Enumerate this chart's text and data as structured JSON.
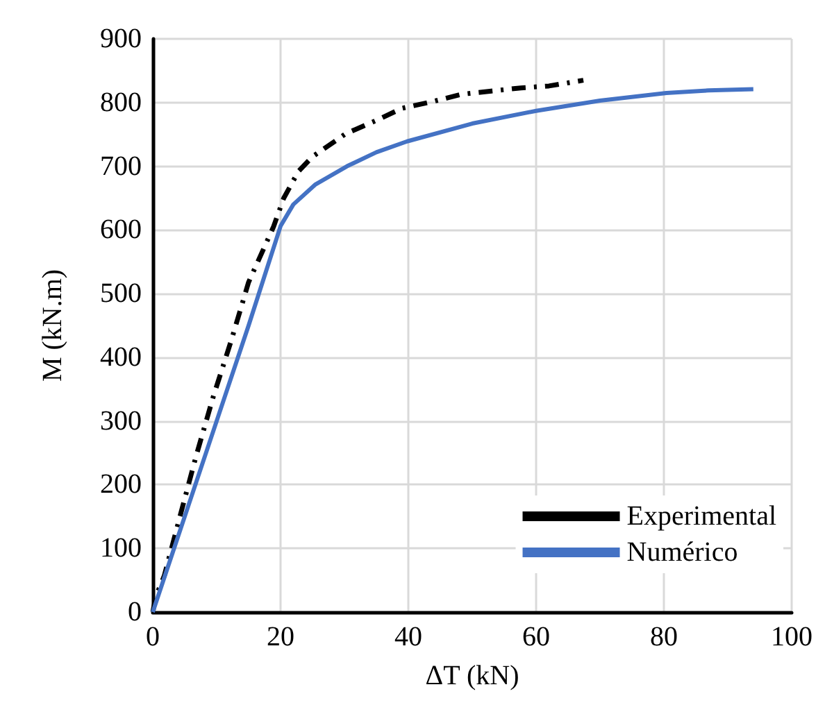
{
  "chart_data": {
    "type": "line",
    "xlabel": "ΔT (kN)",
    "ylabel": "M (kN.m)",
    "xlim": [
      0,
      100
    ],
    "ylim": [
      0,
      900
    ],
    "xticks": [
      0,
      20,
      40,
      60,
      80,
      100
    ],
    "yticks": [
      0,
      100,
      200,
      300,
      400,
      500,
      600,
      700,
      800,
      900
    ],
    "grid": true,
    "legend": "bottom right",
    "marker": "none",
    "series": [
      {
        "name": "Experimental",
        "color": "#000000",
        "line_style": "dashdot",
        "x": [
          0,
          0.5,
          1.8,
          4.2,
          6.7,
          9.4,
          12.3,
          15,
          18.9,
          20.5,
          22.8,
          25,
          30.2,
          35,
          39,
          44,
          48.3,
          53,
          57.6,
          62,
          67.4
        ],
        "values": [
          0,
          25,
          57,
          148,
          242,
          336,
          427,
          518,
          605,
          650,
          692,
          715,
          751,
          772,
          791,
          802,
          813,
          818,
          823,
          826,
          835
        ]
      },
      {
        "name": "Numérico",
        "color": "#4472c4",
        "line_style": "solid",
        "x": [
          0,
          5,
          10,
          15,
          20,
          22,
          25.4,
          30.4,
          35,
          39.8,
          50,
          60,
          70,
          80.4,
          87,
          94
        ],
        "values": [
          0,
          150,
          300,
          450,
          606,
          640,
          671,
          700,
          722,
          739,
          767,
          787,
          803,
          815,
          819,
          821
        ]
      }
    ]
  }
}
